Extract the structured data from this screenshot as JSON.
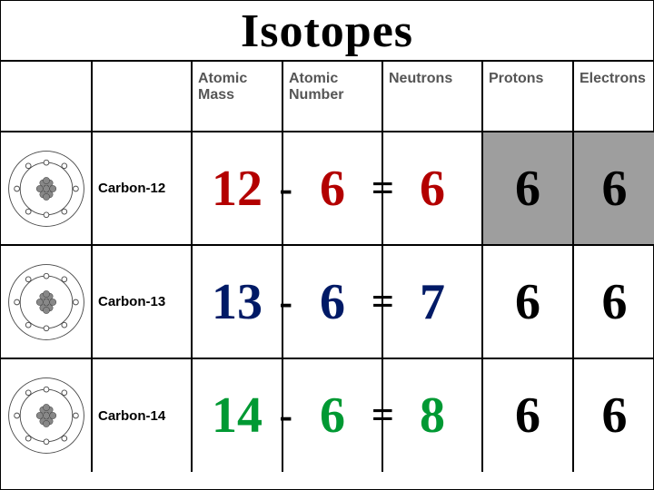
{
  "title": "Isotopes",
  "columns": {
    "mass": "Atomic Mass",
    "number": "Atomic Number",
    "neutrons": "Neutrons",
    "protons": "Protons",
    "electrons": "Electrons"
  },
  "rows": [
    {
      "name": "Carbon-12",
      "mass": "12",
      "number": "6",
      "neutrons": "6",
      "protons": "6",
      "electrons": "6",
      "color": "#b30000",
      "op1": "-",
      "op2": "="
    },
    {
      "name": "Carbon-13",
      "mass": "13",
      "number": "6",
      "neutrons": "7",
      "protons": "6",
      "electrons": "6",
      "color": "#001a66",
      "op1": "-",
      "op2": "="
    },
    {
      "name": "Carbon-14",
      "mass": "14",
      "number": "6",
      "neutrons": "8",
      "protons": "6",
      "electrons": "6",
      "color": "#009933",
      "op1": "-",
      "op2": "="
    }
  ],
  "style": {
    "background": "#ffffff",
    "border_color": "#000000",
    "header_color": "#555555",
    "header_fontsize": 16,
    "title_fontsize": 52,
    "big_fontsize": 56,
    "plain_big_color": "#000000",
    "shaded_bg": "#9e9e9e",
    "atom_stroke": "#444444",
    "atom_fill": "#888888"
  }
}
